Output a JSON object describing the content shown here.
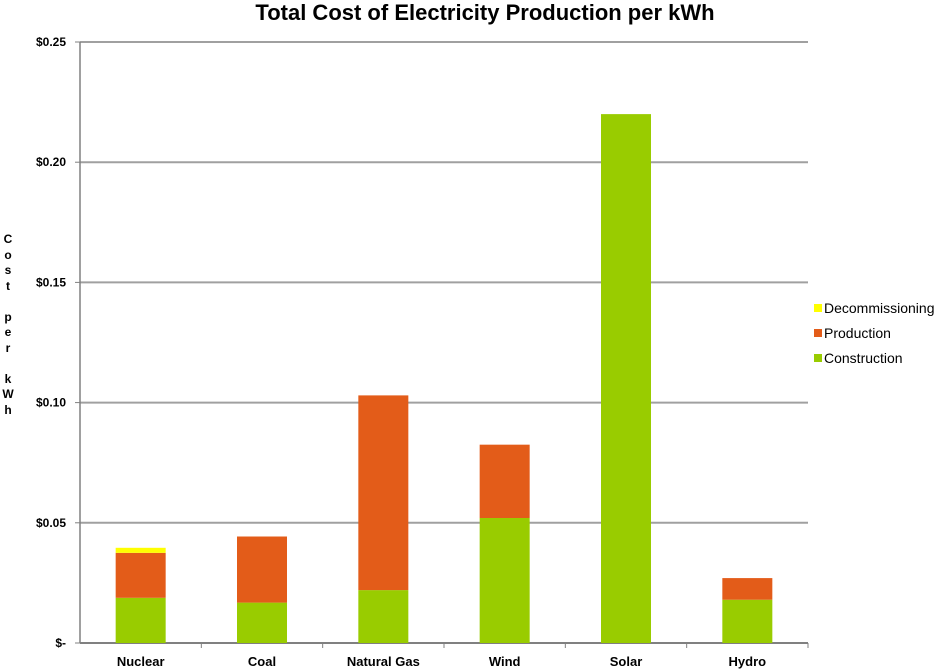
{
  "chart_data": {
    "type": "bar",
    "stacked": true,
    "title": "Total Cost of Electricity Production per kWh",
    "xlabel": "",
    "ylabel": "Cost per kWh",
    "ylim": [
      0,
      0.25
    ],
    "yticks": [
      0,
      0.05,
      0.1,
      0.15,
      0.2,
      0.25
    ],
    "ytick_labels": [
      "$-",
      "$0.05",
      "$0.10",
      "$0.15",
      "$0.20",
      "$0.25"
    ],
    "grid": true,
    "legend": "right",
    "categories": [
      "Nuclear",
      "Coal",
      "Natural Gas",
      "Wind",
      "Solar",
      "Hydro"
    ],
    "series": [
      {
        "name": "Construction",
        "color": "#99cc00",
        "values": [
          0.0188,
          0.0168,
          0.022,
          0.052,
          0.22,
          0.018
        ]
      },
      {
        "name": "Production",
        "color": "#e35c19",
        "values": [
          0.0187,
          0.0275,
          0.081,
          0.0305,
          0,
          0.009
        ]
      },
      {
        "name": "Decommissioning",
        "color": "#ffff00",
        "values": [
          0.0021,
          0,
          0,
          0,
          0,
          0
        ]
      }
    ]
  }
}
